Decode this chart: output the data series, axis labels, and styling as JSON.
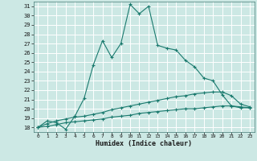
{
  "xlabel": "Humidex (Indice chaleur)",
  "bg_color": "#cce8e4",
  "grid_color": "#ffffff",
  "line_color": "#1a7a6e",
  "xlim": [
    -0.5,
    23.5
  ],
  "ylim": [
    17.5,
    31.5
  ],
  "xticks": [
    0,
    1,
    2,
    3,
    4,
    5,
    6,
    7,
    8,
    9,
    10,
    11,
    12,
    13,
    14,
    15,
    16,
    17,
    18,
    19,
    20,
    21,
    22,
    23
  ],
  "yticks": [
    18,
    19,
    20,
    21,
    22,
    23,
    24,
    25,
    26,
    27,
    28,
    29,
    30,
    31
  ],
  "series1_x": [
    0,
    1,
    2,
    3,
    4,
    5,
    6,
    7,
    8,
    9,
    10,
    11,
    12,
    13,
    14,
    15,
    16,
    17,
    18,
    19,
    20,
    21,
    22,
    23
  ],
  "series1_y": [
    18.0,
    18.7,
    18.5,
    17.8,
    19.2,
    21.1,
    24.7,
    27.3,
    25.5,
    27.0,
    31.2,
    30.2,
    31.0,
    26.8,
    26.5,
    26.3,
    25.2,
    24.5,
    23.3,
    23.0,
    21.5,
    20.3,
    20.1,
    20.1
  ],
  "series2_x": [
    0,
    1,
    2,
    3,
    4,
    5,
    6,
    7,
    8,
    9,
    10,
    11,
    12,
    13,
    14,
    15,
    16,
    17,
    18,
    19,
    20,
    21,
    22,
    23
  ],
  "series2_y": [
    18.0,
    18.4,
    18.7,
    18.9,
    19.1,
    19.2,
    19.4,
    19.6,
    19.9,
    20.1,
    20.3,
    20.5,
    20.7,
    20.9,
    21.1,
    21.3,
    21.4,
    21.6,
    21.7,
    21.8,
    21.8,
    21.4,
    20.5,
    20.2
  ],
  "series3_x": [
    0,
    1,
    2,
    3,
    4,
    5,
    6,
    7,
    8,
    9,
    10,
    11,
    12,
    13,
    14,
    15,
    16,
    17,
    18,
    19,
    20,
    21,
    22,
    23
  ],
  "series3_y": [
    18.0,
    18.1,
    18.3,
    18.5,
    18.6,
    18.7,
    18.8,
    18.9,
    19.1,
    19.2,
    19.3,
    19.5,
    19.6,
    19.7,
    19.8,
    19.9,
    20.0,
    20.0,
    20.1,
    20.2,
    20.3,
    20.3,
    20.2,
    20.1
  ]
}
